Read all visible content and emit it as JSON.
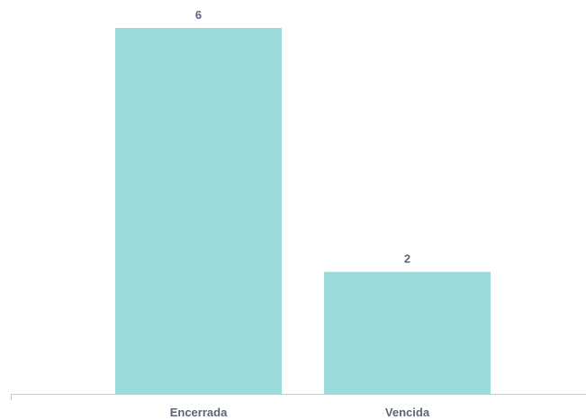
{
  "chart_data": {
    "type": "bar",
    "title": "",
    "xlabel": "",
    "ylabel": "",
    "categories": [
      "Encerrada",
      "Vencida"
    ],
    "values": [
      6,
      2
    ],
    "data_labels": [
      "6",
      "2"
    ],
    "ylim": [
      0,
      6
    ],
    "grid": false,
    "legend": "none",
    "colors": {
      "bar": "#9bdada",
      "label_text": "#5b647a",
      "axis": "#c4c8cf"
    }
  }
}
